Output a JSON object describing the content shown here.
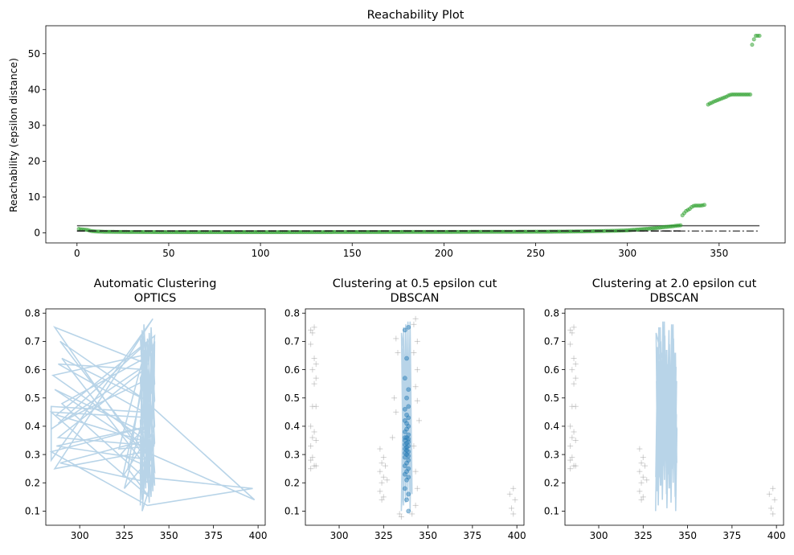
{
  "chart_data": [
    {
      "type": "scatter",
      "title": "Reachability Plot",
      "xlabel": "",
      "ylabel": "Reachability (epsilon distance)",
      "xlim": [
        -17,
        386
      ],
      "ylim": [
        -2.8,
        57.8
      ],
      "xticks": [
        0,
        50,
        100,
        150,
        200,
        250,
        300,
        350
      ],
      "yticks": [
        0,
        10,
        20,
        30,
        40,
        50
      ],
      "grid": false,
      "color": "#2ca02c",
      "hlines": [
        {
          "y": 2.0,
          "xmin": 0,
          "xmax": 372,
          "style": "solid",
          "color": "#555555"
        },
        {
          "y": 0.5,
          "xmin": 0,
          "xmax": 372,
          "style": "dashdot",
          "color": "#555555"
        }
      ],
      "series": [
        {
          "points": [
            [
              1,
              1.1
            ],
            [
              2,
              1.0
            ],
            [
              3,
              0.95
            ],
            [
              4,
              0.9
            ],
            [
              5,
              0.85
            ],
            [
              6,
              0.8
            ],
            [
              7,
              0.6
            ],
            [
              8,
              0.5
            ],
            [
              9,
              0.45
            ],
            [
              10,
              0.4
            ],
            [
              15,
              0.3
            ],
            [
              25,
              0.25
            ],
            [
              40,
              0.22
            ],
            [
              60,
              0.2
            ],
            [
              80,
              0.2
            ],
            [
              100,
              0.2
            ],
            [
              120,
              0.2
            ],
            [
              140,
              0.22
            ],
            [
              160,
              0.22
            ],
            [
              180,
              0.25
            ],
            [
              200,
              0.25
            ],
            [
              220,
              0.28
            ],
            [
              240,
              0.3
            ],
            [
              255,
              0.32
            ],
            [
              265,
              0.35
            ],
            [
              275,
              0.4
            ],
            [
              285,
              0.5
            ],
            [
              295,
              0.6
            ],
            [
              300,
              0.7
            ],
            [
              305,
              0.9
            ],
            [
              310,
              1.1
            ],
            [
              315,
              1.3
            ],
            [
              320,
              1.6
            ],
            [
              324,
              1.8
            ],
            [
              327,
              2.0
            ],
            [
              329,
              2.1
            ],
            [
              330,
              4.9
            ],
            [
              331,
              5.5
            ],
            [
              332,
              6.1
            ],
            [
              333,
              6.4
            ],
            [
              334,
              6.7
            ],
            [
              335,
              7.2
            ],
            [
              336,
              7.5
            ],
            [
              337,
              7.6
            ],
            [
              338,
              7.6
            ],
            [
              339,
              7.6
            ],
            [
              340,
              7.6
            ],
            [
              341,
              7.7
            ],
            [
              342,
              7.8
            ],
            [
              344,
              35.8
            ],
            [
              345,
              36.1
            ],
            [
              346,
              36.3
            ],
            [
              347,
              36.6
            ],
            [
              348,
              36.8
            ],
            [
              349,
              37.0
            ],
            [
              350,
              37.2
            ],
            [
              351,
              37.4
            ],
            [
              352,
              37.6
            ],
            [
              353,
              37.8
            ],
            [
              354,
              38.0
            ],
            [
              355,
              38.3
            ],
            [
              356,
              38.5
            ],
            [
              357,
              38.6
            ],
            [
              358,
              38.6
            ],
            [
              359,
              38.6
            ],
            [
              360,
              38.6
            ],
            [
              361,
              38.6
            ],
            [
              362,
              38.6
            ],
            [
              363,
              38.6
            ],
            [
              364,
              38.6
            ],
            [
              365,
              38.6
            ],
            [
              366,
              38.6
            ],
            [
              367,
              38.6
            ],
            [
              368,
              52.5
            ],
            [
              369,
              54.0
            ],
            [
              370,
              55.0
            ],
            [
              371,
              55.0
            ],
            [
              372,
              55.0
            ]
          ]
        }
      ]
    },
    {
      "type": "line",
      "title": "Automatic Clustering",
      "subtitle": "OPTICS",
      "xlim": [
        281,
        404
      ],
      "ylim": [
        0.05,
        0.815
      ],
      "xticks": [
        300,
        325,
        350,
        375,
        400
      ],
      "yticks": [
        0.1,
        0.2,
        0.3,
        0.4,
        0.5,
        0.6,
        0.7,
        0.8
      ],
      "color": "#b8d4e8",
      "series": [
        {
          "points": [
            [
              284,
              0.39
            ],
            [
              338,
              0.62
            ],
            [
              286,
              0.75
            ],
            [
              342,
              0.24
            ],
            [
              338,
              0.6
            ],
            [
              288,
              0.62
            ],
            [
              336,
              0.45
            ],
            [
              284,
              0.47
            ],
            [
              284,
              0.28
            ],
            [
              341,
              0.78
            ],
            [
              286,
              0.25
            ],
            [
              337,
              0.31
            ],
            [
              398,
              0.14
            ],
            [
              335,
              0.5
            ],
            [
              289,
              0.7
            ],
            [
              340,
              0.28
            ],
            [
              287,
              0.33
            ],
            [
              339,
              0.4
            ],
            [
              284,
              0.31
            ],
            [
              338,
              0.12
            ],
            [
              397,
              0.18
            ],
            [
              336,
              0.22
            ],
            [
              290,
              0.48
            ],
            [
              342,
              0.66
            ],
            [
              285,
              0.58
            ],
            [
              337,
              0.35
            ],
            [
              289,
              0.27
            ],
            [
              340,
              0.2
            ],
            [
              335,
              0.1
            ],
            [
              342,
              0.72
            ],
            [
              288,
              0.41
            ],
            [
              336,
              0.56
            ],
            [
              324,
              0.22
            ],
            [
              339,
              0.37
            ],
            [
              286,
              0.53
            ],
            [
              341,
              0.3
            ],
            [
              325,
              0.18
            ],
            [
              338,
              0.49
            ],
            [
              290,
              0.64
            ],
            [
              337,
              0.26
            ],
            [
              323,
              0.3
            ],
            [
              341,
              0.43
            ],
            [
              284,
              0.45
            ],
            [
              339,
              0.15
            ],
            [
              327,
              0.25
            ],
            [
              336,
              0.6
            ],
            [
              288,
              0.36
            ],
            [
              342,
              0.33
            ],
            [
              322,
              0.32
            ],
            [
              338,
              0.7
            ],
            [
              287,
              0.44
            ],
            [
              340,
              0.34
            ],
            [
              336,
              0.42
            ],
            [
              339,
              0.27
            ],
            [
              337,
              0.52
            ],
            [
              341,
              0.39
            ]
          ]
        }
      ]
    },
    {
      "type": "scatter",
      "title": "Clustering at 0.5 epsilon cut",
      "subtitle": "DBSCAN",
      "xlim": [
        281,
        404
      ],
      "ylim": [
        0.05,
        0.815
      ],
      "xticks": [
        300,
        325,
        350,
        375,
        400
      ],
      "yticks": [
        0.1,
        0.2,
        0.3,
        0.4,
        0.5,
        0.6,
        0.7,
        0.8
      ],
      "cluster_color": "#1f77b4",
      "noise_color": "#999999",
      "cluster_points": [
        [
          337,
          0.74
        ],
        [
          339,
          0.75
        ],
        [
          338,
          0.64
        ],
        [
          337,
          0.57
        ],
        [
          339,
          0.53
        ],
        [
          338,
          0.5
        ],
        [
          339,
          0.47
        ],
        [
          337,
          0.46
        ],
        [
          338,
          0.44
        ],
        [
          339,
          0.43
        ],
        [
          337,
          0.42
        ],
        [
          338,
          0.41
        ],
        [
          339,
          0.4
        ],
        [
          338,
          0.39
        ],
        [
          337,
          0.38
        ],
        [
          339,
          0.37
        ],
        [
          338,
          0.36
        ],
        [
          337,
          0.35
        ],
        [
          339,
          0.345
        ],
        [
          338,
          0.34
        ],
        [
          337,
          0.335
        ],
        [
          339,
          0.33
        ],
        [
          338,
          0.325
        ],
        [
          337,
          0.32
        ],
        [
          339,
          0.31
        ],
        [
          338,
          0.3
        ],
        [
          337,
          0.29
        ],
        [
          339,
          0.28
        ],
        [
          338,
          0.27
        ],
        [
          337,
          0.26
        ],
        [
          339,
          0.25
        ],
        [
          338,
          0.24
        ],
        [
          337,
          0.23
        ],
        [
          339,
          0.22
        ],
        [
          338,
          0.21
        ],
        [
          337,
          0.18
        ],
        [
          339,
          0.16
        ],
        [
          338,
          0.14
        ],
        [
          339,
          0.1
        ],
        [
          337,
          0.36
        ],
        [
          339,
          0.355
        ],
        [
          338,
          0.315
        ],
        [
          337,
          0.305
        ],
        [
          339,
          0.295
        ]
      ],
      "noise_points": [
        [
          284,
          0.74
        ],
        [
          286,
          0.75
        ],
        [
          285,
          0.73
        ],
        [
          284,
          0.69
        ],
        [
          286,
          0.64
        ],
        [
          287,
          0.62
        ],
        [
          285,
          0.6
        ],
        [
          287,
          0.57
        ],
        [
          286,
          0.55
        ],
        [
          285,
          0.47
        ],
        [
          287,
          0.47
        ],
        [
          284,
          0.4
        ],
        [
          286,
          0.38
        ],
        [
          285,
          0.36
        ],
        [
          287,
          0.35
        ],
        [
          284,
          0.33
        ],
        [
          285,
          0.29
        ],
        [
          284,
          0.28
        ],
        [
          286,
          0.26
        ],
        [
          287,
          0.26
        ],
        [
          284,
          0.25
        ],
        [
          323,
          0.32
        ],
        [
          325,
          0.29
        ],
        [
          324,
          0.27
        ],
        [
          326,
          0.26
        ],
        [
          323,
          0.24
        ],
        [
          325,
          0.22
        ],
        [
          327,
          0.21
        ],
        [
          324,
          0.2
        ],
        [
          323,
          0.17
        ],
        [
          325,
          0.15
        ],
        [
          324,
          0.14
        ],
        [
          330,
          0.36
        ],
        [
          332,
          0.45
        ],
        [
          331,
          0.5
        ],
        [
          333,
          0.66
        ],
        [
          332,
          0.71
        ],
        [
          342,
          0.76
        ],
        [
          343,
          0.78
        ],
        [
          344,
          0.7
        ],
        [
          342,
          0.66
        ],
        [
          344,
          0.6
        ],
        [
          343,
          0.54
        ],
        [
          344,
          0.49
        ],
        [
          345,
          0.42
        ],
        [
          342,
          0.33
        ],
        [
          343,
          0.24
        ],
        [
          344,
          0.18
        ],
        [
          343,
          0.12
        ],
        [
          341,
          0.09
        ],
        [
          335,
          0.08
        ],
        [
          334,
          0.09
        ],
        [
          396,
          0.16
        ],
        [
          398,
          0.18
        ],
        [
          397,
          0.11
        ],
        [
          399,
          0.14
        ],
        [
          398,
          0.09
        ]
      ],
      "cluster_line_xrange": [
        335,
        341
      ]
    },
    {
      "type": "scatter",
      "title": "Clustering at 2.0 epsilon cut",
      "subtitle": "DBSCAN",
      "xlim": [
        281,
        404
      ],
      "ylim": [
        0.05,
        0.815
      ],
      "xticks": [
        300,
        325,
        350,
        375,
        400
      ],
      "yticks": [
        0.1,
        0.2,
        0.3,
        0.4,
        0.5,
        0.6,
        0.7,
        0.8
      ],
      "cluster_color": "#b8d4e8",
      "noise_color": "#999999",
      "noise_points": [
        [
          284,
          0.74
        ],
        [
          286,
          0.75
        ],
        [
          285,
          0.73
        ],
        [
          284,
          0.69
        ],
        [
          286,
          0.64
        ],
        [
          287,
          0.62
        ],
        [
          285,
          0.6
        ],
        [
          287,
          0.57
        ],
        [
          286,
          0.55
        ],
        [
          285,
          0.47
        ],
        [
          287,
          0.47
        ],
        [
          284,
          0.4
        ],
        [
          286,
          0.38
        ],
        [
          285,
          0.36
        ],
        [
          287,
          0.35
        ],
        [
          284,
          0.33
        ],
        [
          285,
          0.29
        ],
        [
          284,
          0.28
        ],
        [
          286,
          0.26
        ],
        [
          287,
          0.26
        ],
        [
          284,
          0.25
        ],
        [
          323,
          0.32
        ],
        [
          325,
          0.29
        ],
        [
          324,
          0.27
        ],
        [
          326,
          0.26
        ],
        [
          323,
          0.24
        ],
        [
          325,
          0.22
        ],
        [
          327,
          0.21
        ],
        [
          324,
          0.2
        ],
        [
          323,
          0.17
        ],
        [
          325,
          0.15
        ],
        [
          324,
          0.14
        ],
        [
          396,
          0.16
        ],
        [
          398,
          0.18
        ],
        [
          397,
          0.11
        ],
        [
          399,
          0.14
        ],
        [
          398,
          0.09
        ]
      ],
      "cluster_line_xrange": [
        332,
        344
      ]
    }
  ]
}
